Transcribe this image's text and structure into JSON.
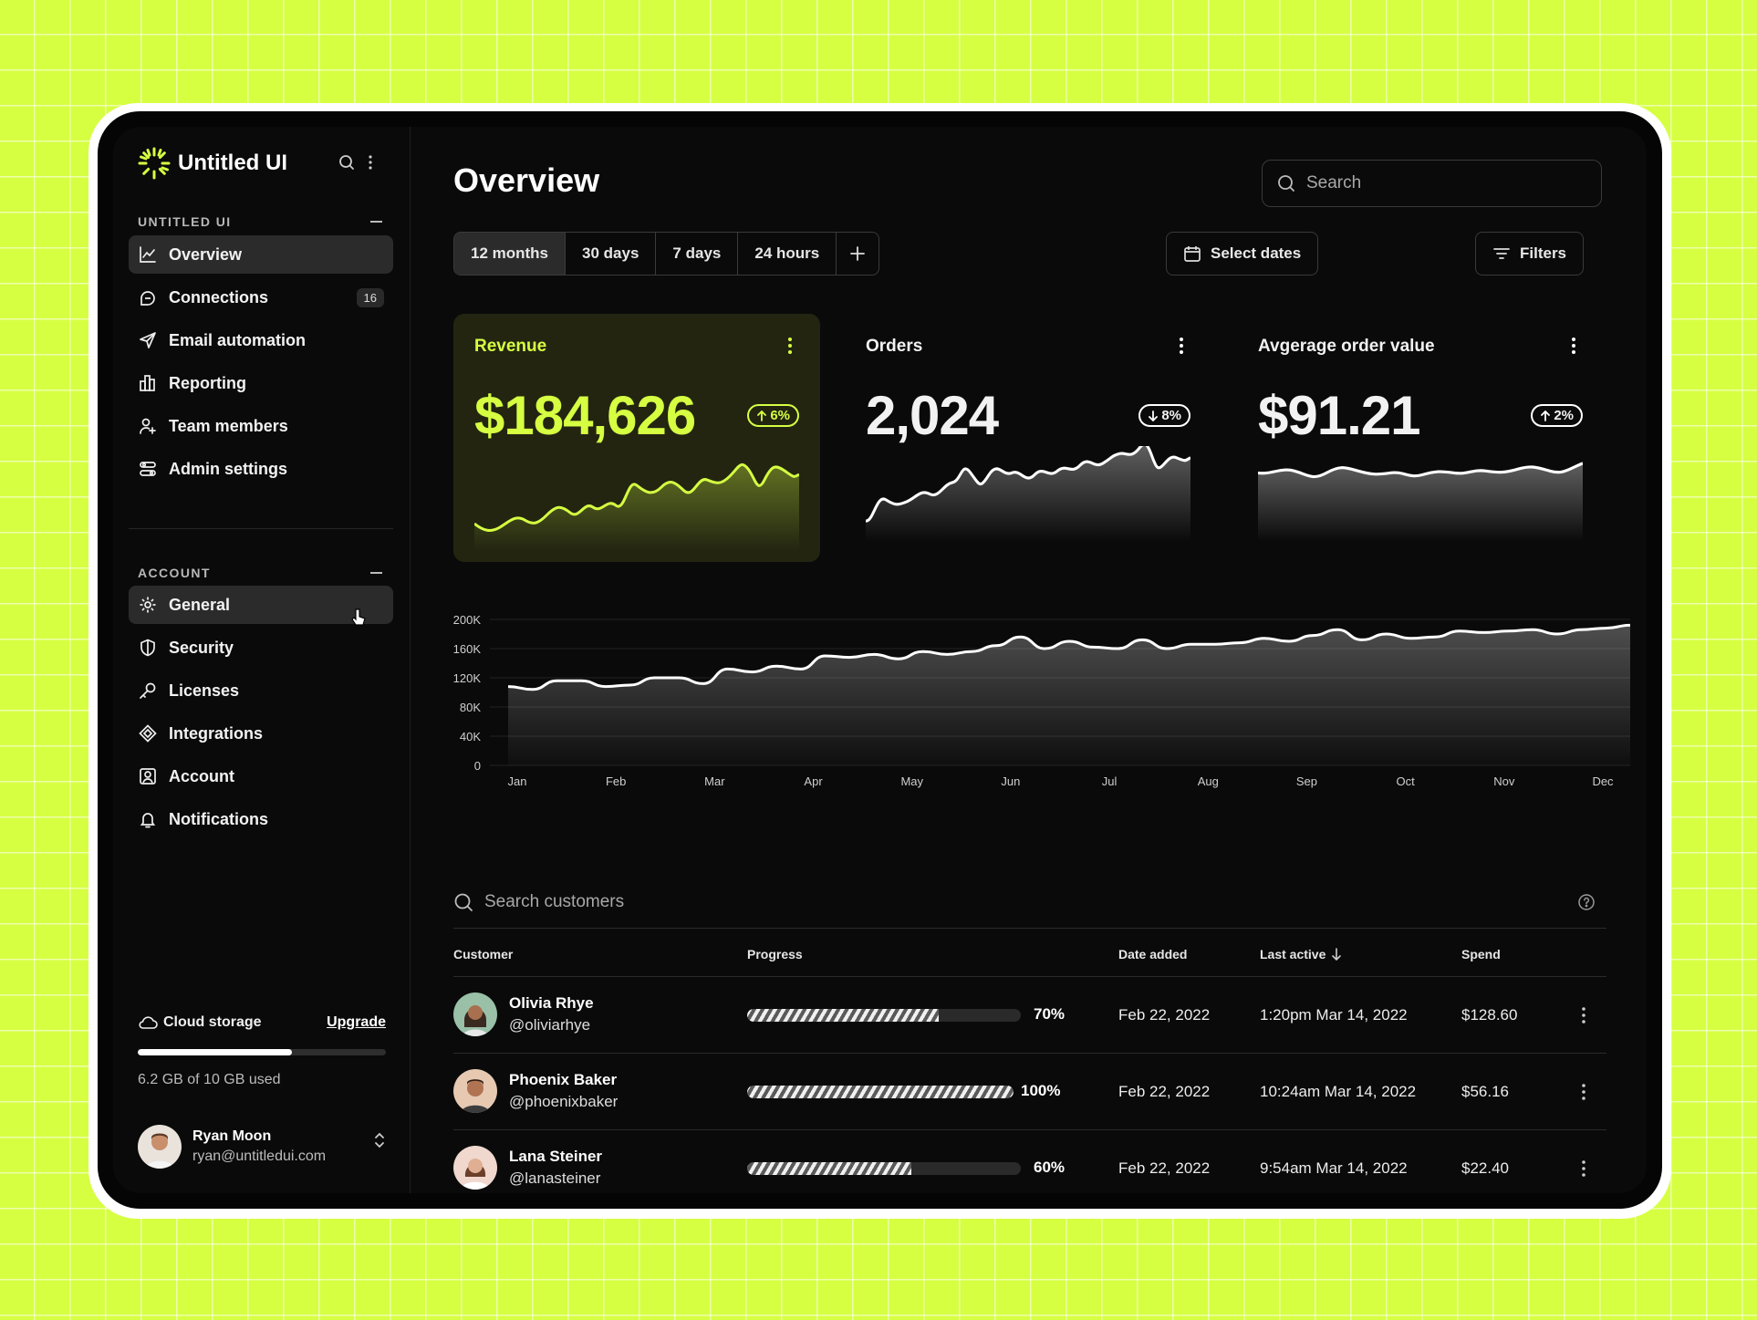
{
  "app": {
    "name": "Untitled UI",
    "brand_color": "#d6ff42"
  },
  "sidebar": {
    "section1_title": "UNTITLED UI",
    "section1_items": [
      {
        "label": "Overview",
        "icon": "line-chart-icon",
        "active": true
      },
      {
        "label": "Connections",
        "icon": "chat-bubble-icon",
        "badge": "16"
      },
      {
        "label": "Email automation",
        "icon": "send-icon"
      },
      {
        "label": "Reporting",
        "icon": "bar-chart-icon"
      },
      {
        "label": "Team members",
        "icon": "users-plus-icon"
      },
      {
        "label": "Admin settings",
        "icon": "toggles-icon"
      }
    ],
    "section2_title": "ACCOUNT",
    "section2_items": [
      {
        "label": "General",
        "icon": "gear-icon",
        "active": true
      },
      {
        "label": "Security",
        "icon": "shield-icon"
      },
      {
        "label": "Licenses",
        "icon": "key-icon"
      },
      {
        "label": "Integrations",
        "icon": "puzzle-icon"
      },
      {
        "label": "Account",
        "icon": "user-square-icon"
      },
      {
        "label": "Notifications",
        "icon": "bell-icon"
      }
    ],
    "storage": {
      "title": "Cloud storage",
      "upgrade": "Upgrade",
      "used_text": "6.2 GB of 10 GB used",
      "used_fraction": 0.62
    },
    "user": {
      "name": "Ryan Moon",
      "email": "ryan@untitledui.com"
    }
  },
  "header": {
    "title": "Overview",
    "search_placeholder": "Search"
  },
  "range_tabs": [
    "12 months",
    "30 days",
    "7 days",
    "24 hours"
  ],
  "buttons": {
    "select_dates": "Select dates",
    "filters": "Filters"
  },
  "cards": [
    {
      "title": "Revenue",
      "value": "$184,626",
      "delta": "6%",
      "direction": "up",
      "color": "#d6ff42"
    },
    {
      "title": "Orders",
      "value": "2,024",
      "delta": "8%",
      "direction": "down",
      "color": "#ffffff"
    },
    {
      "title": "Avgerage order value",
      "value": "$91.21",
      "delta": "2%",
      "direction": "up",
      "color": "#ffffff"
    }
  ],
  "chart_data": {
    "type": "area",
    "categories": [
      "Jan",
      "Feb",
      "Mar",
      "Apr",
      "May",
      "Jun",
      "Jul",
      "Aug",
      "Sep",
      "Oct",
      "Nov",
      "Dec"
    ],
    "y_ticks": [
      "200K",
      "160K",
      "120K",
      "80K",
      "40K",
      "0"
    ],
    "ylim": [
      0,
      200000
    ],
    "x": [
      0,
      0.25,
      0.5,
      0.75,
      1,
      1.25,
      1.5,
      1.75,
      2,
      2.25,
      2.5,
      2.75,
      3,
      3.25,
      3.5,
      3.75,
      4,
      4.25,
      4.5,
      4.75,
      5,
      5.25,
      5.5,
      5.75,
      6,
      6.25,
      6.5,
      6.75,
      7,
      7.25,
      7.5,
      7.75,
      8,
      8.25,
      8.5,
      8.75,
      9,
      9.25,
      9.5,
      9.75,
      10,
      10.25,
      10.5,
      10.75,
      11,
      11.25,
      11.5
    ],
    "series": [
      {
        "values": [
          108000,
          104000,
          116000,
          116000,
          108000,
          110000,
          120000,
          120000,
          112000,
          132000,
          128000,
          136000,
          132000,
          150000,
          148000,
          152000,
          146000,
          156000,
          152000,
          156000,
          164000,
          176000,
          160000,
          170000,
          162000,
          160000,
          172000,
          160000,
          166000,
          166000,
          168000,
          174000,
          170000,
          178000,
          186000,
          172000,
          180000,
          174000,
          176000,
          184000,
          182000,
          184000,
          186000,
          180000,
          186000,
          188000,
          192000
        ]
      }
    ]
  },
  "table": {
    "search_placeholder": "Search customers",
    "headers": {
      "customer": "Customer",
      "progress": "Progress",
      "date": "Date added",
      "last": "Last active",
      "spend": "Spend"
    },
    "rows": [
      {
        "name": "Olivia Rhye",
        "handle": "@oliviarhye",
        "progress": 70,
        "progress_label": "70%",
        "date": "Feb 22, 2022",
        "last": "1:20pm Mar 14, 2022",
        "spend": "$128.60"
      },
      {
        "name": "Phoenix Baker",
        "handle": "@phoenixbaker",
        "progress": 100,
        "progress_label": "100%",
        "date": "Feb 22, 2022",
        "last": "10:24am Mar 14, 2022",
        "spend": "$56.16"
      },
      {
        "name": "Lana Steiner",
        "handle": "@lanasteiner",
        "progress": 60,
        "progress_label": "60%",
        "date": "Feb 22, 2022",
        "last": "9:54am Mar 14, 2022",
        "spend": "$22.40"
      }
    ]
  }
}
